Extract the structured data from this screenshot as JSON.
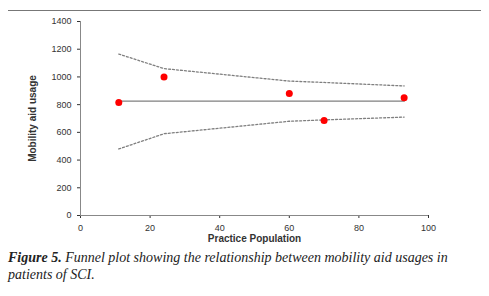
{
  "chart_data": {
    "type": "scatter",
    "caption": "Figure 5. Funnel plot showing the relationship between mobility aid usages in patients of SCI.",
    "x_label": "Practice Population",
    "y_label": "Mobility aid usage",
    "xlim": [
      0,
      100
    ],
    "xticks": [
      0,
      20,
      40,
      60,
      80,
      100
    ],
    "ylim": [
      0,
      1400
    ],
    "yticks": [
      0,
      200,
      400,
      600,
      800,
      1000,
      1200,
      1400
    ],
    "grid": false,
    "series": [
      {
        "type": "line",
        "line_style": "dotted",
        "color": "#7f7f7f",
        "x": [
          11,
          24,
          60,
          70,
          93
        ],
        "values": [
          1165,
          1060,
          970,
          960,
          935
        ]
      },
      {
        "type": "line",
        "line_style": "dotted",
        "color": "#7f7f7f",
        "x": [
          11,
          24,
          60,
          70,
          93
        ],
        "values": [
          480,
          590,
          680,
          690,
          710
        ]
      },
      {
        "type": "line",
        "line_style": "solid",
        "color": "#808080",
        "x": [
          11,
          93
        ],
        "values": [
          825,
          825
        ]
      },
      {
        "type": "scatter",
        "marker": "circle",
        "color": "#ff0000",
        "x": [
          11,
          24,
          60,
          70,
          93
        ],
        "values": [
          815,
          1000,
          880,
          685,
          850
        ]
      }
    ]
  }
}
